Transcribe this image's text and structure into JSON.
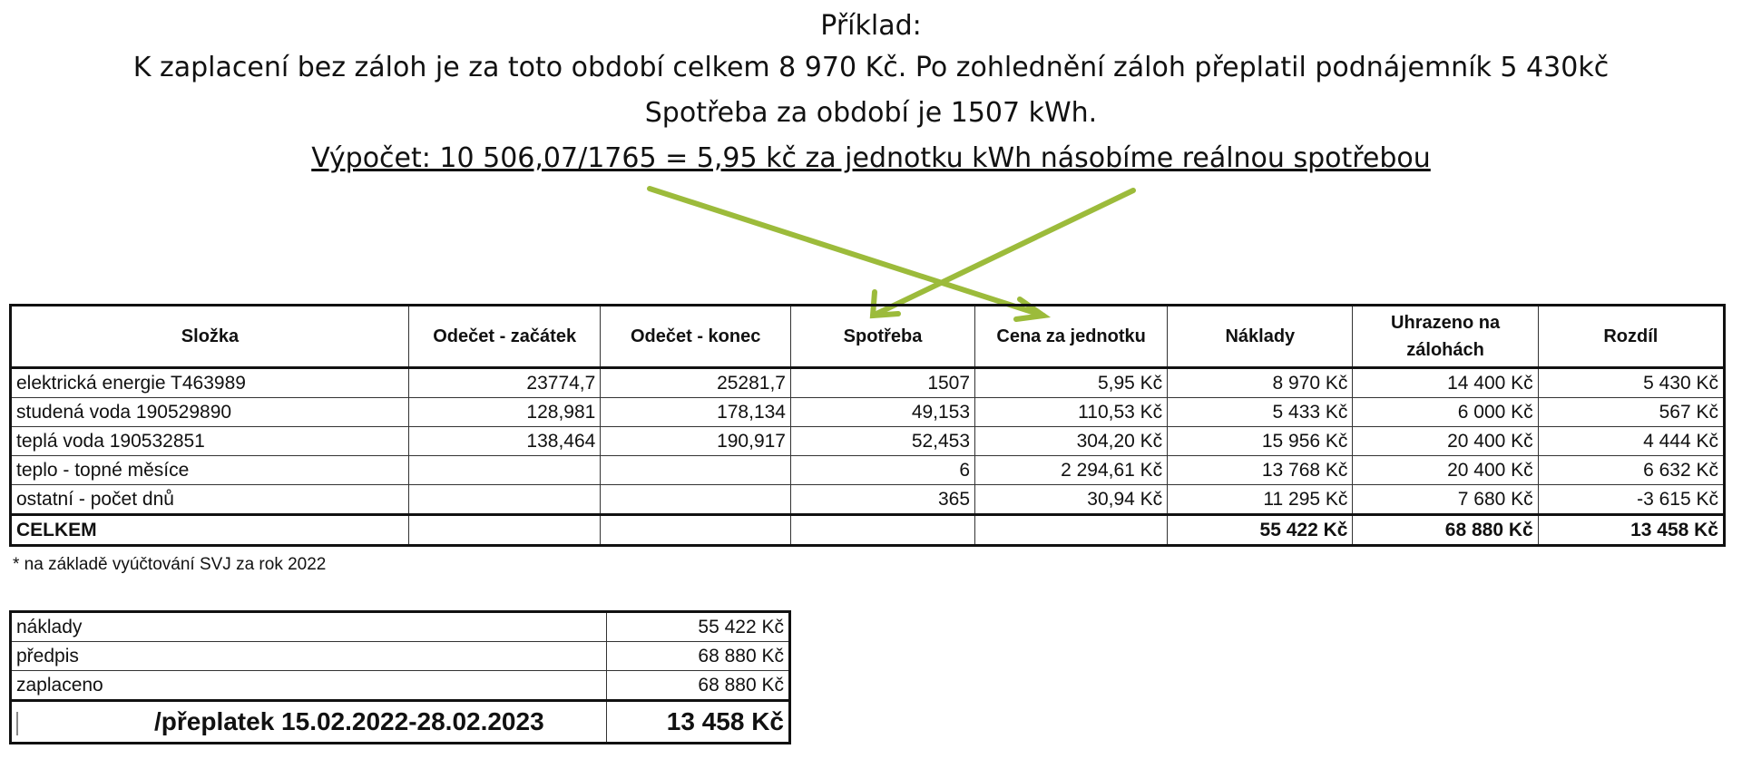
{
  "intro": {
    "title": "Příklad:",
    "line1": "K zaplacení bez záloh je za toto období celkem 8 970 Kč. Po zohlednění záloh přeplatil podnájemník 5 430kč",
    "line2": "Spotřeba za období je 1507 kWh.",
    "line3": "Výpočet: 10 506,07/1765 = 5,95 kč za jednotku kWh násobíme reálnou spotřebou"
  },
  "arrow_color": "#9cbb3b",
  "table": {
    "headers": [
      "Složka",
      "Odečet - začátek",
      "Odečet - konec",
      "Spotřeba",
      "Cena za jednotku",
      "Náklady",
      "Uhrazeno na zálohách",
      "Rozdíl"
    ],
    "rows": [
      [
        "elektrická energie T463989",
        "23774,7",
        "25281,7",
        "1507",
        "5,95 Kč",
        "8 970 Kč",
        "14 400 Kč",
        "5 430 Kč"
      ],
      [
        "studená voda 190529890",
        "128,981",
        "178,134",
        "49,153",
        "110,53 Kč",
        "5 433 Kč",
        "6 000 Kč",
        "567 Kč"
      ],
      [
        "teplá voda 190532851",
        "138,464",
        "190,917",
        "52,453",
        "304,20 Kč",
        "15 956 Kč",
        "20 400 Kč",
        "4 444 Kč"
      ],
      [
        "teplo - topné měsíce",
        "",
        "",
        "6",
        "2 294,61 Kč",
        "13 768 Kč",
        "20 400 Kč",
        "6 632 Kč"
      ],
      [
        "ostatní - počet dnů",
        "",
        "",
        "365",
        "30,94 Kč",
        "11 295 Kč",
        "7 680 Kč",
        "-3 615 Kč"
      ]
    ],
    "total": [
      "CELKEM",
      "",
      "",
      "",
      "",
      "55 422 Kč",
      "68 880 Kč",
      "13 458 Kč"
    ]
  },
  "footnote": "* na základě vyúčtování SVJ za rok 2022",
  "summary": {
    "rows": [
      [
        "náklady",
        "55 422 Kč"
      ],
      [
        "předpis",
        "68 880 Kč"
      ],
      [
        "zaplaceno",
        "68 880 Kč"
      ]
    ],
    "final_label": "/přeplatek 15.02.2022-28.02.2023",
    "final_value": "13 458 Kč"
  }
}
